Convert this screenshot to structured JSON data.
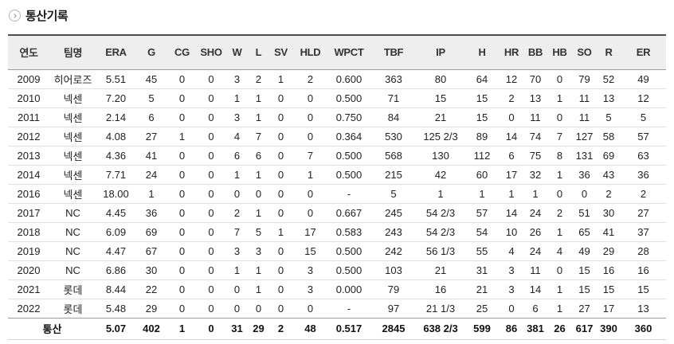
{
  "section": {
    "title": "통산기록"
  },
  "table": {
    "columns": [
      "연도",
      "팀명",
      "ERA",
      "G",
      "CG",
      "SHO",
      "W",
      "L",
      "SV",
      "HLD",
      "WPCT",
      "TBF",
      "IP",
      "H",
      "HR",
      "BB",
      "HB",
      "SO",
      "R",
      "ER"
    ],
    "rows": [
      [
        "2009",
        "히어로즈",
        "5.51",
        "45",
        "0",
        "0",
        "3",
        "2",
        "1",
        "2",
        "0.600",
        "363",
        "80",
        "64",
        "12",
        "70",
        "0",
        "79",
        "52",
        "49"
      ],
      [
        "2010",
        "넥센",
        "7.20",
        "5",
        "0",
        "0",
        "1",
        "1",
        "0",
        "0",
        "0.500",
        "71",
        "15",
        "15",
        "2",
        "13",
        "1",
        "11",
        "13",
        "12"
      ],
      [
        "2011",
        "넥센",
        "2.14",
        "6",
        "0",
        "0",
        "3",
        "1",
        "0",
        "0",
        "0.750",
        "84",
        "21",
        "15",
        "0",
        "11",
        "0",
        "11",
        "5",
        "5"
      ],
      [
        "2012",
        "넥센",
        "4.08",
        "27",
        "1",
        "0",
        "4",
        "7",
        "0",
        "0",
        "0.364",
        "530",
        "125 2/3",
        "89",
        "14",
        "74",
        "7",
        "127",
        "58",
        "57"
      ],
      [
        "2013",
        "넥센",
        "4.36",
        "41",
        "0",
        "0",
        "6",
        "6",
        "0",
        "7",
        "0.500",
        "568",
        "130",
        "112",
        "6",
        "75",
        "8",
        "131",
        "69",
        "63"
      ],
      [
        "2014",
        "넥센",
        "7.71",
        "24",
        "0",
        "0",
        "1",
        "1",
        "0",
        "1",
        "0.500",
        "215",
        "42",
        "60",
        "17",
        "32",
        "1",
        "36",
        "43",
        "36"
      ],
      [
        "2016",
        "넥센",
        "18.00",
        "1",
        "0",
        "0",
        "0",
        "0",
        "0",
        "0",
        "-",
        "5",
        "1",
        "1",
        "1",
        "1",
        "0",
        "0",
        "2",
        "2"
      ],
      [
        "2017",
        "NC",
        "4.45",
        "36",
        "0",
        "0",
        "2",
        "1",
        "0",
        "0",
        "0.667",
        "245",
        "54 2/3",
        "57",
        "14",
        "24",
        "2",
        "51",
        "30",
        "27"
      ],
      [
        "2018",
        "NC",
        "6.09",
        "69",
        "0",
        "0",
        "7",
        "5",
        "1",
        "17",
        "0.583",
        "243",
        "54 2/3",
        "54",
        "10",
        "26",
        "1",
        "65",
        "41",
        "37"
      ],
      [
        "2019",
        "NC",
        "4.47",
        "67",
        "0",
        "0",
        "3",
        "3",
        "0",
        "15",
        "0.500",
        "242",
        "56 1/3",
        "55",
        "4",
        "24",
        "4",
        "49",
        "29",
        "28"
      ],
      [
        "2020",
        "NC",
        "6.86",
        "30",
        "0",
        "0",
        "1",
        "1",
        "0",
        "3",
        "0.500",
        "103",
        "21",
        "31",
        "3",
        "11",
        "0",
        "15",
        "16",
        "16"
      ],
      [
        "2021",
        "롯데",
        "8.44",
        "22",
        "0",
        "0",
        "0",
        "1",
        "0",
        "3",
        "0.000",
        "79",
        "16",
        "21",
        "3",
        "14",
        "1",
        "15",
        "15",
        "15"
      ],
      [
        "2022",
        "롯데",
        "5.48",
        "29",
        "0",
        "0",
        "0",
        "0",
        "0",
        "0",
        "-",
        "97",
        "21 1/3",
        "25",
        "0",
        "6",
        "1",
        "27",
        "17",
        "13"
      ]
    ],
    "total": [
      "통산",
      "",
      "5.07",
      "402",
      "1",
      "0",
      "31",
      "29",
      "2",
      "48",
      "0.517",
      "2845",
      "638 2/3",
      "599",
      "86",
      "381",
      "26",
      "617",
      "390",
      "360"
    ]
  }
}
